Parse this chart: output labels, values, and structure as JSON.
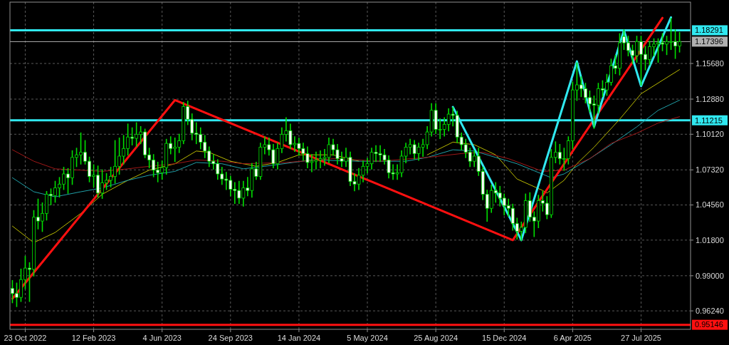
{
  "chart_data": {
    "type": "candlestick",
    "color": "#00e000",
    "x": [
      "2022-10-02",
      "2022-10-09",
      "2022-10-16",
      "2022-10-23",
      "2022-10-30",
      "2022-11-06",
      "2022-11-13",
      "2022-11-20",
      "2022-11-27",
      "2022-12-04",
      "2022-12-11",
      "2022-12-18",
      "2022-12-25",
      "2023-01-01",
      "2023-01-08",
      "2023-01-15",
      "2023-01-22",
      "2023-01-29",
      "2023-02-05",
      "2023-02-12",
      "2023-02-19",
      "2023-02-26",
      "2023-03-05",
      "2023-03-12",
      "2023-03-19",
      "2023-03-26",
      "2023-04-02",
      "2023-04-09",
      "2023-04-16",
      "2023-04-23",
      "2023-04-30",
      "2023-05-07",
      "2023-05-14",
      "2023-05-21",
      "2023-05-28",
      "2023-06-04",
      "2023-06-11",
      "2023-06-18",
      "2023-06-25",
      "2023-07-02",
      "2023-07-09",
      "2023-07-16",
      "2023-07-23",
      "2023-07-30",
      "2023-08-06",
      "2023-08-13",
      "2023-08-20",
      "2023-08-27",
      "2023-09-03",
      "2023-09-10",
      "2023-09-17",
      "2023-09-24",
      "2023-10-01",
      "2023-10-08",
      "2023-10-15",
      "2023-10-22",
      "2023-10-29",
      "2023-11-05",
      "2023-11-12",
      "2023-11-19",
      "2023-11-26",
      "2023-12-03",
      "2023-12-10",
      "2023-12-17",
      "2023-12-24",
      "2023-12-31",
      "2024-01-07",
      "2024-01-14",
      "2024-01-21",
      "2024-01-28",
      "2024-02-04",
      "2024-02-11",
      "2024-02-18",
      "2024-02-25",
      "2024-03-03",
      "2024-03-10",
      "2024-03-17",
      "2024-03-24",
      "2024-03-31",
      "2024-04-07",
      "2024-04-14",
      "2024-04-21",
      "2024-04-28",
      "2024-05-05",
      "2024-05-12",
      "2024-05-19",
      "2024-05-26",
      "2024-06-02",
      "2024-06-09",
      "2024-06-16",
      "2024-06-23",
      "2024-06-30",
      "2024-07-07",
      "2024-07-14",
      "2024-07-21",
      "2024-07-28",
      "2024-08-04",
      "2024-08-11",
      "2024-08-18",
      "2024-08-25",
      "2024-09-01",
      "2024-09-08",
      "2024-09-15",
      "2024-09-22",
      "2024-09-29",
      "2024-10-06",
      "2024-10-13",
      "2024-10-20",
      "2024-10-27",
      "2024-11-03",
      "2024-11-10",
      "2024-11-17",
      "2024-11-24",
      "2024-12-01",
      "2024-12-08",
      "2024-12-15",
      "2024-12-22",
      "2024-12-29",
      "2025-01-05",
      "2025-01-12",
      "2025-01-19",
      "2025-01-26",
      "2025-02-02",
      "2025-02-09",
      "2025-02-16",
      "2025-02-23",
      "2025-03-02",
      "2025-03-09",
      "2025-03-16",
      "2025-03-23",
      "2025-03-30",
      "2025-04-06",
      "2025-04-13",
      "2025-04-20",
      "2025-04-27",
      "2025-05-04",
      "2025-05-11",
      "2025-05-18",
      "2025-05-25",
      "2025-06-01",
      "2025-06-08",
      "2025-06-15",
      "2025-06-22",
      "2025-06-29",
      "2025-07-06",
      "2025-07-13",
      "2025-07-20",
      "2025-07-27",
      "2025-08-03",
      "2025-08-10",
      "2025-08-17",
      "2025-08-24",
      "2025-08-31",
      "2025-09-07",
      "2025-09-14",
      "2025-09-21",
      "2025-09-28"
    ],
    "ohlc": [
      [
        0.98,
        0.986,
        0.969,
        0.976
      ],
      [
        0.976,
        0.984,
        0.966,
        0.973
      ],
      [
        0.973,
        0.995,
        0.97,
        0.987
      ],
      [
        0.987,
        1.005,
        0.98,
        0.996
      ],
      [
        0.996,
        1.0,
        0.97,
        0.995
      ],
      [
        0.995,
        1.041,
        0.99,
        1.036
      ],
      [
        1.036,
        1.05,
        1.027,
        1.033
      ],
      [
        1.033,
        1.047,
        1.025,
        1.039
      ],
      [
        1.039,
        1.056,
        1.034,
        1.054
      ],
      [
        1.054,
        1.058,
        1.046,
        1.053
      ],
      [
        1.053,
        1.064,
        1.048,
        1.059
      ],
      [
        1.059,
        1.067,
        1.052,
        1.062
      ],
      [
        1.062,
        1.075,
        1.058,
        1.07
      ],
      [
        1.07,
        1.074,
        1.055,
        1.067
      ],
      [
        1.067,
        1.088,
        1.062,
        1.083
      ],
      [
        1.083,
        1.09,
        1.076,
        1.085
      ],
      [
        1.085,
        1.102,
        1.078,
        1.087
      ],
      [
        1.087,
        1.096,
        1.078,
        1.08
      ],
      [
        1.08,
        1.083,
        1.064,
        1.068
      ],
      [
        1.068,
        1.077,
        1.06,
        1.069
      ],
      [
        1.069,
        1.076,
        1.052,
        1.055
      ],
      [
        1.055,
        1.073,
        1.051,
        1.063
      ],
      [
        1.063,
        1.07,
        1.058,
        1.065
      ],
      [
        1.065,
        1.075,
        1.06,
        1.068
      ],
      [
        1.068,
        1.096,
        1.063,
        1.076
      ],
      [
        1.076,
        1.098,
        1.07,
        1.084
      ],
      [
        1.084,
        1.1,
        1.078,
        1.09
      ],
      [
        1.09,
        1.109,
        1.085,
        1.099
      ],
      [
        1.099,
        1.106,
        1.093,
        1.098
      ],
      [
        1.098,
        1.11,
        1.092,
        1.101
      ],
      [
        1.101,
        1.107,
        1.094,
        1.103
      ],
      [
        1.103,
        1.105,
        1.083,
        1.085
      ],
      [
        1.085,
        1.09,
        1.075,
        1.081
      ],
      [
        1.081,
        1.085,
        1.068,
        1.073
      ],
      [
        1.073,
        1.079,
        1.064,
        1.071
      ],
      [
        1.071,
        1.08,
        1.066,
        1.075
      ],
      [
        1.075,
        1.097,
        1.07,
        1.094
      ],
      [
        1.094,
        1.099,
        1.086,
        1.09
      ],
      [
        1.09,
        1.098,
        1.08,
        1.091
      ],
      [
        1.091,
        1.101,
        1.087,
        1.096
      ],
      [
        1.096,
        1.126,
        1.094,
        1.123
      ],
      [
        1.123,
        1.127,
        1.109,
        1.113
      ],
      [
        1.113,
        1.117,
        1.097,
        1.102
      ],
      [
        1.102,
        1.11,
        1.094,
        1.101
      ],
      [
        1.101,
        1.106,
        1.09,
        1.095
      ],
      [
        1.095,
        1.1,
        1.083,
        1.088
      ],
      [
        1.088,
        1.091,
        1.076,
        1.08
      ],
      [
        1.08,
        1.085,
        1.074,
        1.078
      ],
      [
        1.078,
        1.081,
        1.066,
        1.07
      ],
      [
        1.07,
        1.075,
        1.062,
        1.066
      ],
      [
        1.066,
        1.071,
        1.058,
        1.065
      ],
      [
        1.065,
        1.068,
        1.053,
        1.058
      ],
      [
        1.058,
        1.063,
        1.047,
        1.057
      ],
      [
        1.057,
        1.064,
        1.047,
        1.051
      ],
      [
        1.051,
        1.064,
        1.045,
        1.059
      ],
      [
        1.059,
        1.067,
        1.053,
        1.057
      ],
      [
        1.057,
        1.078,
        1.052,
        1.074
      ],
      [
        1.074,
        1.079,
        1.066,
        1.068
      ],
      [
        1.068,
        1.094,
        1.066,
        1.091
      ],
      [
        1.091,
        1.099,
        1.086,
        1.093
      ],
      [
        1.093,
        1.098,
        1.085,
        1.089
      ],
      [
        1.089,
        1.093,
        1.075,
        1.078
      ],
      [
        1.078,
        1.094,
        1.074,
        1.09
      ],
      [
        1.09,
        1.106,
        1.087,
        1.101
      ],
      [
        1.101,
        1.114,
        1.096,
        1.104
      ],
      [
        1.104,
        1.109,
        1.09,
        1.093
      ],
      [
        1.093,
        1.099,
        1.088,
        1.094
      ],
      [
        1.094,
        1.098,
        1.085,
        1.09
      ],
      [
        1.09,
        1.094,
        1.081,
        1.086
      ],
      [
        1.086,
        1.091,
        1.075,
        1.079
      ],
      [
        1.079,
        1.085,
        1.072,
        1.08
      ],
      [
        1.08,
        1.087,
        1.074,
        1.081
      ],
      [
        1.081,
        1.088,
        1.075,
        1.082
      ],
      [
        1.082,
        1.089,
        1.077,
        1.083
      ],
      [
        1.083,
        1.098,
        1.079,
        1.093
      ],
      [
        1.093,
        1.097,
        1.085,
        1.089
      ],
      [
        1.089,
        1.093,
        1.078,
        1.082
      ],
      [
        1.082,
        1.087,
        1.076,
        1.08
      ],
      [
        1.08,
        1.09,
        1.076,
        1.083
      ],
      [
        1.083,
        1.087,
        1.061,
        1.064
      ],
      [
        1.064,
        1.07,
        1.057,
        1.062
      ],
      [
        1.062,
        1.074,
        1.058,
        1.069
      ],
      [
        1.069,
        1.08,
        1.064,
        1.076
      ],
      [
        1.076,
        1.082,
        1.071,
        1.078
      ],
      [
        1.078,
        1.09,
        1.074,
        1.087
      ],
      [
        1.087,
        1.092,
        1.08,
        1.086
      ],
      [
        1.086,
        1.092,
        1.08,
        1.085
      ],
      [
        1.085,
        1.089,
        1.078,
        1.081
      ],
      [
        1.081,
        1.084,
        1.067,
        1.071
      ],
      [
        1.071,
        1.077,
        1.066,
        1.07
      ],
      [
        1.07,
        1.077,
        1.066,
        1.071
      ],
      [
        1.071,
        1.088,
        1.068,
        1.084
      ],
      [
        1.084,
        1.094,
        1.079,
        1.091
      ],
      [
        1.091,
        1.097,
        1.086,
        1.093
      ],
      [
        1.093,
        1.096,
        1.082,
        1.086
      ],
      [
        1.086,
        1.094,
        1.081,
        1.091
      ],
      [
        1.091,
        1.097,
        1.084,
        1.093
      ],
      [
        1.093,
        1.107,
        1.09,
        1.103
      ],
      [
        1.103,
        1.125,
        1.1,
        1.12
      ],
      [
        1.12,
        1.125,
        1.102,
        1.105
      ],
      [
        1.105,
        1.113,
        1.098,
        1.105
      ],
      [
        1.105,
        1.114,
        1.1,
        1.109
      ],
      [
        1.109,
        1.121,
        1.104,
        1.117
      ],
      [
        1.117,
        1.122,
        1.108,
        1.116
      ],
      [
        1.116,
        1.119,
        1.095,
        1.099
      ],
      [
        1.099,
        1.102,
        1.089,
        1.093
      ],
      [
        1.093,
        1.097,
        1.083,
        1.087
      ],
      [
        1.087,
        1.09,
        1.076,
        1.08
      ],
      [
        1.08,
        1.088,
        1.076,
        1.084
      ],
      [
        1.084,
        1.09,
        1.069,
        1.072
      ],
      [
        1.072,
        1.075,
        1.05,
        1.054
      ],
      [
        1.054,
        1.057,
        1.033,
        1.043
      ],
      [
        1.043,
        1.061,
        1.04,
        1.057
      ],
      [
        1.057,
        1.063,
        1.048,
        1.055
      ],
      [
        1.055,
        1.06,
        1.045,
        1.051
      ],
      [
        1.051,
        1.054,
        1.038,
        1.045
      ],
      [
        1.045,
        1.05,
        1.037,
        1.043
      ],
      [
        1.043,
        1.046,
        1.026,
        1.031
      ],
      [
        1.031,
        1.035,
        1.019,
        1.025
      ],
      [
        1.025,
        1.032,
        1.018,
        1.028
      ],
      [
        1.028,
        1.054,
        1.024,
        1.049
      ],
      [
        1.049,
        1.055,
        1.033,
        1.036
      ],
      [
        1.036,
        1.04,
        1.021,
        1.033
      ],
      [
        1.033,
        1.053,
        1.028,
        1.049
      ],
      [
        1.049,
        1.056,
        1.041,
        1.047
      ],
      [
        1.047,
        1.052,
        1.035,
        1.038
      ],
      [
        1.038,
        1.089,
        1.036,
        1.083
      ],
      [
        1.083,
        1.095,
        1.079,
        1.087
      ],
      [
        1.087,
        1.093,
        1.078,
        1.082
      ],
      [
        1.082,
        1.09,
        1.073,
        1.082
      ],
      [
        1.082,
        1.099,
        1.078,
        1.096
      ],
      [
        1.096,
        1.142,
        1.09,
        1.136
      ],
      [
        1.136,
        1.157,
        1.128,
        1.14
      ],
      [
        1.14,
        1.146,
        1.131,
        1.137
      ],
      [
        1.137,
        1.141,
        1.126,
        1.13
      ],
      [
        1.13,
        1.135,
        1.119,
        1.125
      ],
      [
        1.125,
        1.131,
        1.106,
        1.124
      ],
      [
        1.124,
        1.141,
        1.118,
        1.137
      ],
      [
        1.137,
        1.143,
        1.131,
        1.136
      ],
      [
        1.136,
        1.148,
        1.132,
        1.142
      ],
      [
        1.142,
        1.16,
        1.14,
        1.155
      ],
      [
        1.155,
        1.163,
        1.149,
        1.153
      ],
      [
        1.153,
        1.18,
        1.148,
        1.173
      ],
      [
        1.178,
        1.183,
        1.168,
        1.173
      ],
      [
        1.173,
        1.178,
        1.163,
        1.167
      ],
      [
        1.167,
        1.171,
        1.157,
        1.163
      ],
      [
        1.163,
        1.178,
        1.158,
        1.174
      ],
      [
        1.174,
        1.178,
        1.14,
        1.164
      ],
      [
        1.164,
        1.17,
        1.152,
        1.16
      ],
      [
        1.16,
        1.174,
        1.156,
        1.17
      ],
      [
        1.17,
        1.176,
        1.163,
        1.172
      ],
      [
        1.172,
        1.176,
        1.158,
        1.173
      ],
      [
        1.173,
        1.18,
        1.167,
        1.172
      ],
      [
        1.172,
        1.178,
        1.164,
        1.174
      ],
      [
        1.174,
        1.192,
        1.168,
        1.174
      ],
      [
        1.174,
        1.183,
        1.161,
        1.1705
      ],
      [
        1.1705,
        1.181,
        1.166,
        1.17396
      ]
    ],
    "series": [
      {
        "type": "line",
        "color": "#b8b800",
        "x": [
          "2022-10-02",
          "2022-11-06",
          "2022-12-11",
          "2023-01-22",
          "2023-02-26",
          "2023-04-09",
          "2023-05-14",
          "2023-06-25",
          "2023-07-30",
          "2023-08-20",
          "2023-09-24",
          "2023-11-05",
          "2023-12-10",
          "2024-01-14",
          "2024-03-10",
          "2024-04-21",
          "2024-07-07",
          "2024-08-11",
          "2024-09-22",
          "2024-10-27",
          "2024-12-01",
          "2025-01-05",
          "2025-02-16",
          "2025-02-23",
          "2025-03-23",
          "2025-04-13",
          "2025-05-11",
          "2025-06-22",
          "2025-07-27",
          "2025-09-28"
        ],
        "values": [
          1.029,
          1.016,
          1.024,
          1.039,
          1.054,
          1.065,
          1.073,
          1.078,
          1.088,
          1.087,
          1.08,
          1.076,
          1.079,
          1.085,
          1.085,
          1.08,
          null,
          1.085,
          1.095,
          1.093,
          1.085,
          1.066,
          1.057,
          1.055,
          1.065,
          1.078,
          1.091,
          1.113,
          1.133,
          1.152
        ]
      },
      {
        "type": "line",
        "color": "#20a0a8",
        "x": [
          "2022-10-02",
          "2022-11-06",
          "2022-12-11",
          "2023-01-22",
          "2023-02-26",
          "2023-04-09",
          "2023-05-14",
          "2023-06-25",
          "2023-07-30",
          "2023-09-10",
          "2023-10-15",
          "2023-11-19",
          "2024-02-04",
          "2024-04-21",
          "2024-07-07",
          "2024-08-11",
          "2024-09-22",
          "2024-10-27",
          "2024-12-01",
          "2025-01-05",
          "2025-03-02",
          "2025-03-23",
          "2025-05-04",
          "2025-06-08",
          "2025-07-20",
          "2025-08-24",
          "2025-09-28"
        ],
        "values": [
          1.067,
          1.056,
          1.052,
          1.056,
          1.059,
          1.065,
          1.069,
          1.072,
          1.079,
          1.078,
          1.074,
          1.076,
          1.081,
          1.08,
          1.08,
          1.083,
          1.089,
          1.088,
          1.083,
          1.078,
          1.067,
          1.07,
          1.082,
          1.093,
          1.107,
          1.12,
          1.128
        ]
      },
      {
        "type": "line",
        "color": "#a01818",
        "x": [
          "2022-10-02",
          "2022-11-06",
          "2022-12-11",
          "2023-01-22",
          "2023-02-26",
          "2023-04-09",
          "2023-05-14",
          "2023-06-25",
          "2023-07-30",
          "2023-09-10",
          "2023-10-15",
          "2023-12-24",
          "2024-03-10",
          "2024-05-26",
          "2024-08-11",
          "2024-10-06",
          "2024-11-10",
          "2024-12-22",
          "2025-02-16",
          "2025-03-23",
          "2025-05-04",
          "2025-06-08",
          "2025-07-20",
          "2025-08-24",
          "2025-09-28"
        ],
        "values": [
          1.089,
          1.08,
          1.074,
          1.073,
          1.072,
          1.074,
          1.076,
          1.078,
          1.081,
          1.08,
          1.078,
          1.079,
          1.082,
          1.08,
          1.083,
          1.086,
          1.087,
          1.082,
          1.072,
          1.073,
          1.082,
          1.094,
          1.102,
          1.11,
          1.115
        ]
      },
      {
        "type": "line",
        "color": "#ff1010",
        "x": [
          "2022-10-02",
          "2023-06-25",
          "2024-12-29",
          "2025-08-31"
        ],
        "values": [
          0.972,
          1.128,
          1.018,
          1.1926
        ]
      },
      {
        "type": "line",
        "color": "#30e8f0",
        "x": [
          "2024-09-22",
          "2025-01-12",
          "2025-04-13",
          "2025-05-11",
          "2025-06-29",
          "2025-07-27",
          "2025-09-14"
        ],
        "values": [
          1.1226,
          1.018,
          1.1585,
          1.107,
          1.1829,
          1.139,
          1.193
        ]
      }
    ],
    "xlim": [
      "2022-09-28",
      "2025-10-16"
    ],
    "xticks": [
      {
        "value": "2022-10-23",
        "label": "23 Oct 2022"
      },
      {
        "value": "2023-02-12",
        "label": "12 Feb 2023"
      },
      {
        "value": "2023-06-04",
        "label": "4 Jun 2023"
      },
      {
        "value": "2023-09-24",
        "label": "24 Sep 2023"
      },
      {
        "value": "2024-01-14",
        "label": "14 Jan 2024"
      },
      {
        "value": "2024-05-05",
        "label": "5 May 2024"
      },
      {
        "value": "2024-08-25",
        "label": "25 Aug 2024"
      },
      {
        "value": "2024-12-15",
        "label": "15 Dec 2024"
      },
      {
        "value": "2025-04-06",
        "label": "6 Apr 2025"
      },
      {
        "value": "2025-07-27",
        "label": "27 Jul 2025"
      }
    ],
    "ylim": [
      0.9479,
      1.205
    ],
    "yticks": [
      {
        "value": 0.9624,
        "label": "0.96240"
      },
      {
        "value": 0.99,
        "label": "0.99000"
      },
      {
        "value": 1.018,
        "label": "1.01800"
      },
      {
        "value": 1.0456,
        "label": "1.04560"
      },
      {
        "value": 1.0732,
        "label": "1.07320"
      },
      {
        "value": 1.1012,
        "label": "1.10120"
      },
      {
        "value": 1.1288,
        "label": "1.12880"
      },
      {
        "value": 1.1568,
        "label": "1.15680"
      }
    ],
    "grid": true,
    "ref_lines": [
      {
        "axis": "y",
        "value": 1.18291,
        "label": "1.18291",
        "color": "#30e8f0"
      },
      {
        "axis": "y",
        "value": 1.17396,
        "label": "1.17396",
        "color": "#b0b0b0"
      },
      {
        "axis": "y",
        "value": 1.11215,
        "label": "1.11215",
        "color": "#30e8f0"
      },
      {
        "axis": "y",
        "value": 0.95146,
        "label": "0.95146",
        "color": "#ff1010"
      }
    ]
  }
}
